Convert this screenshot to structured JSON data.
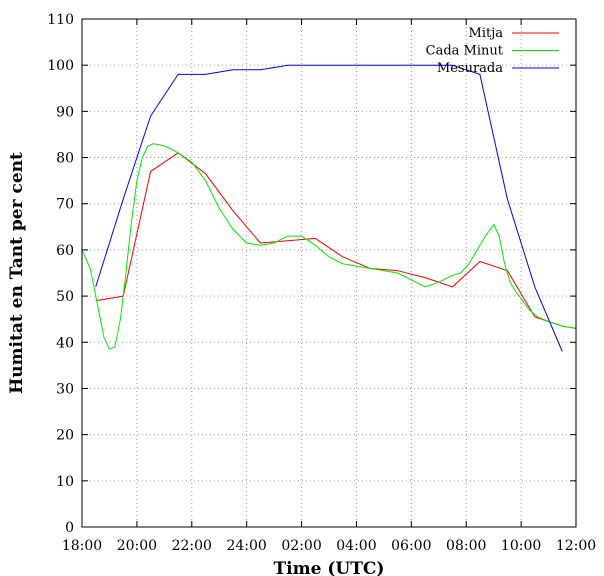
{
  "chart_data": {
    "type": "line",
    "title": "",
    "xlabel": "Time (UTC)",
    "ylabel": "Humitat en Tant per cent",
    "ylim": [
      0,
      110
    ],
    "xlim": [
      0,
      18
    ],
    "y_ticks": [
      0,
      10,
      20,
      30,
      40,
      50,
      60,
      70,
      80,
      90,
      100,
      110
    ],
    "x_ticks": [
      {
        "pos": 0,
        "label": "18:00"
      },
      {
        "pos": 2,
        "label": "20:00"
      },
      {
        "pos": 4,
        "label": "22:00"
      },
      {
        "pos": 6,
        "label": "24:00"
      },
      {
        "pos": 8,
        "label": "02:00"
      },
      {
        "pos": 10,
        "label": "04:00"
      },
      {
        "pos": 12,
        "label": "06:00"
      },
      {
        "pos": 14,
        "label": "08:00"
      },
      {
        "pos": 16,
        "label": "10:00"
      },
      {
        "pos": 18,
        "label": "12:00"
      }
    ],
    "grid": true,
    "legend_position": "top-right",
    "series": [
      {
        "name": "Mitja",
        "color": "#ff0000",
        "x": [
          0.5,
          1.5,
          2.5,
          3.5,
          4.5,
          5.5,
          6.5,
          7.5,
          8.5,
          9.5,
          10.5,
          11.5,
          12.5,
          13.5,
          14.5,
          15.5,
          16.5,
          17.5,
          18
        ],
        "y": [
          49,
          50,
          77,
          81,
          76.5,
          68.5,
          61.5,
          62,
          62.5,
          58.5,
          56,
          55.5,
          54,
          52,
          57.5,
          55.5,
          45.5,
          43.5,
          43
        ]
      },
      {
        "name": "Cada Minut",
        "color": "#00ee00",
        "x": [
          0,
          0.3,
          0.6,
          0.8,
          1.0,
          1.2,
          1.4,
          1.6,
          1.8,
          2.0,
          2.2,
          2.4,
          2.6,
          2.8,
          3.0,
          3.2,
          3.5,
          4.0,
          4.5,
          5.0,
          5.5,
          6.0,
          6.5,
          7.0,
          7.5,
          8.0,
          8.5,
          9.0,
          9.5,
          10.0,
          10.5,
          11.0,
          11.5,
          12.0,
          12.5,
          13.0,
          13.5,
          13.8,
          14.1,
          14.4,
          14.7,
          15.0,
          15.2,
          15.4,
          15.6,
          15.8,
          16.0,
          16.3,
          16.6,
          17.0,
          17.5,
          18.0
        ],
        "y": [
          60,
          56,
          47,
          41,
          38.5,
          39,
          45,
          55,
          66,
          75,
          80,
          82.5,
          83,
          82.8,
          82.5,
          82,
          81,
          79,
          75,
          69,
          64.5,
          61.5,
          61,
          61.5,
          63,
          63,
          61,
          58.5,
          57,
          56.5,
          56,
          55.5,
          55,
          53.5,
          52,
          53,
          54.5,
          55,
          57,
          60,
          63,
          65.5,
          63,
          57,
          53,
          51,
          49.5,
          47,
          45.5,
          44.5,
          43.5,
          43
        ]
      },
      {
        "name": "Mesurada",
        "color": "#0000ff",
        "x": [
          0.5,
          1.5,
          2.5,
          3.5,
          4.5,
          5.5,
          6.5,
          7.5,
          8.5,
          9.5,
          10.5,
          11.5,
          12.5,
          13.5,
          14.5,
          15.5,
          16.5,
          17.5
        ],
        "y": [
          52,
          71,
          89,
          98,
          98,
          99,
          99,
          100,
          100,
          100,
          100,
          100,
          100,
          100,
          98,
          71,
          52,
          38
        ]
      }
    ]
  }
}
